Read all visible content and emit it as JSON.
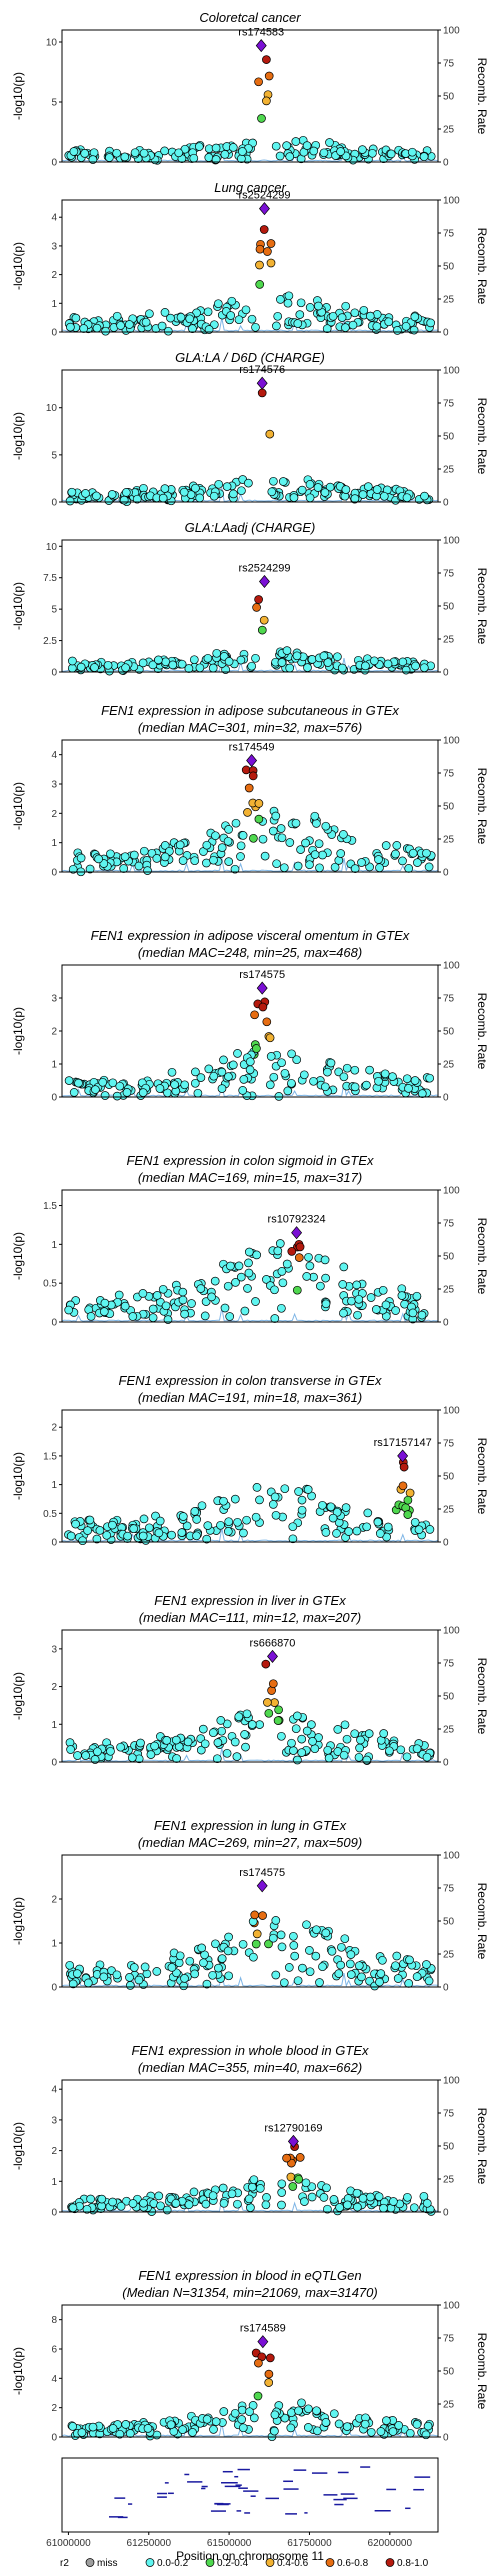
{
  "chart_data": {
    "type": "scatter",
    "xlabel": "Position on chromosome 11",
    "x_ticks": [
      "61000000",
      "61250000",
      "61500000",
      "61750000",
      "62000000"
    ],
    "x_tick_values": [
      61000000,
      61250000,
      61500000,
      61750000,
      62000000
    ],
    "xlim": [
      60980000,
      62150000
    ],
    "ylabel": "-log10(p)",
    "y2label": "Recomb. Rate",
    "y2_ticks": [
      0,
      25,
      50,
      75,
      100
    ],
    "legend": {
      "title": "r2",
      "placement": "bottom",
      "items": [
        {
          "label": "miss",
          "color": "#9e9e9e"
        },
        {
          "label": "0.0-0.2",
          "color": "#5ff5f0"
        },
        {
          "label": "0.2-0.4",
          "color": "#4fd84f"
        },
        {
          "label": "0.4-0.6",
          "color": "#f2b233"
        },
        {
          "label": "0.6-0.8",
          "color": "#e66d12"
        },
        {
          "label": "0.8-1.0",
          "color": "#b51a0e"
        }
      ]
    },
    "panels": [
      {
        "title": [
          "Coloretcal cancer"
        ],
        "ylim": [
          0,
          11
        ],
        "yticks": [
          0,
          5,
          10
        ],
        "lead": {
          "rsid": "rs174583",
          "x": 61600000,
          "y": 9.7
        },
        "peak": 9.7,
        "bg": 1.6
      },
      {
        "title": [
          "Lung cancer"
        ],
        "ylim": [
          0,
          4.6
        ],
        "yticks": [
          0,
          1,
          2,
          3,
          4
        ],
        "lead": {
          "rsid": "rs2524299",
          "x": 61610000,
          "y": 4.3
        },
        "peak": 4.3,
        "bg": 1.2
      },
      {
        "title": [
          "GLA:LA / D6D (CHARGE)"
        ],
        "ylim": [
          0,
          14
        ],
        "yticks": [
          0,
          5,
          10
        ],
        "lead": {
          "rsid": "rs174576",
          "x": 61603000,
          "y": 12.6
        },
        "peak": 12.6,
        "bg": 2.2
      },
      {
        "title": [
          "GLA:LAadj (CHARGE)"
        ],
        "ylim": [
          0,
          10.5
        ],
        "yticks": [
          0.0,
          2.5,
          5.0,
          7.5,
          10.0
        ],
        "lead": {
          "rsid": "rs2524299",
          "x": 61610000,
          "y": 7.2
        },
        "peak": 7.2,
        "bg": 1.5
      },
      {
        "title": [
          "FEN1 expression in adipose subcutaneous in GTEx",
          "(median MAC=301, min=32, max=576)"
        ],
        "ylim": [
          0,
          4.5
        ],
        "yticks": [
          0,
          1,
          2,
          3,
          4
        ],
        "lead": {
          "rsid": "rs174549",
          "x": 61570000,
          "y": 3.8
        },
        "peak": 3.8,
        "bg": 2.0
      },
      {
        "title": [
          "FEN1 expression in adipose visceral omentum in GTEx",
          "(median MAC=248, min=25, max=468)"
        ],
        "ylim": [
          0,
          4
        ],
        "yticks": [
          0,
          1,
          2,
          3
        ],
        "lead": {
          "rsid": "rs174575",
          "x": 61603000,
          "y": 3.3
        },
        "peak": 3.3,
        "bg": 1.4
      },
      {
        "title": [
          "FEN1 expression in colon sigmoid in GTEx",
          "(median MAC=169, min=15, max=317)"
        ],
        "ylim": [
          0,
          1.7
        ],
        "yticks": [
          0.0,
          0.5,
          1.0,
          1.5
        ],
        "lead": {
          "rsid": "rs10792324",
          "x": 61710000,
          "y": 1.15
        },
        "peak": 1.15,
        "bg": 1.0
      },
      {
        "title": [
          "FEN1 expression in colon transverse in GTEx",
          "(median MAC=191, min=18, max=361)"
        ],
        "ylim": [
          0,
          2.3
        ],
        "yticks": [
          0.0,
          0.5,
          1.0,
          1.5,
          2.0
        ],
        "lead": {
          "rsid": "rs17157147",
          "x": 62040000,
          "y": 1.5
        },
        "peak": 1.5,
        "bg": 0.95
      },
      {
        "title": [
          "FEN1 expression in liver in GTEx",
          "(median MAC=111, min=12, max=207)"
        ],
        "ylim": [
          0,
          3.5
        ],
        "yticks": [
          0,
          1,
          2,
          3
        ],
        "lead": {
          "rsid": "rs666870",
          "x": 61635000,
          "y": 2.8
        },
        "peak": 2.8,
        "bg": 1.4
      },
      {
        "title": [
          "FEN1 expression in lung in GTEx",
          "(median MAC=269, min=27, max=509)"
        ],
        "ylim": [
          0,
          3
        ],
        "yticks": [
          0,
          1,
          2
        ],
        "lead": {
          "rsid": "rs174575",
          "x": 61603000,
          "y": 2.3
        },
        "peak": 2.3,
        "bg": 1.6
      },
      {
        "title": [
          "FEN1 expression in whole blood in GTEx",
          "(median MAC=355, min=40, max=662)"
        ],
        "ylim": [
          0,
          4.3
        ],
        "yticks": [
          0,
          1,
          2,
          3,
          4
        ],
        "lead": {
          "rsid": "rs12790169",
          "x": 61700000,
          "y": 2.3
        },
        "peak": 2.3,
        "bg": 1.0
      },
      {
        "title": [
          "FEN1 expression in blood in eQTLGen",
          "(Median N=31354, min=21069, max=31470)"
        ],
        "ylim": [
          0,
          9
        ],
        "yticks": [
          0,
          2,
          4,
          6,
          8
        ],
        "lead": {
          "rsid": "rs174589",
          "x": 61605000,
          "y": 6.5
        },
        "peak": 6.5,
        "bg": 2.1
      }
    ]
  }
}
